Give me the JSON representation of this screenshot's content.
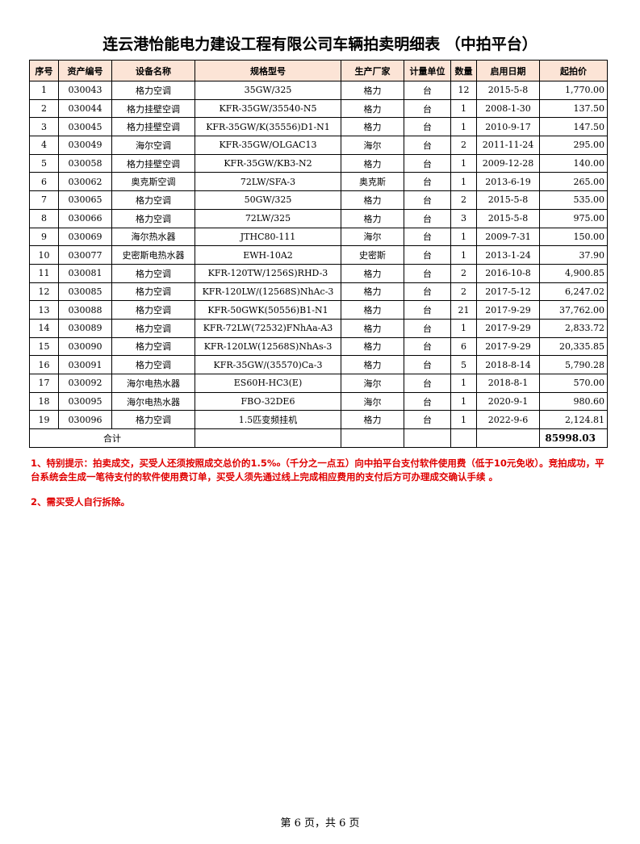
{
  "title": "连云港怡能电力建设工程有限公司车辆拍卖明细表 （中拍平台）",
  "columns": [
    "序号",
    "资产编号",
    "设备名称",
    "规格型号",
    "生产厂家",
    "计量单位",
    "数量",
    "启用日期",
    "起拍价"
  ],
  "rows": [
    [
      "1",
      "030043",
      "格力空调",
      "35GW/325",
      "格力",
      "台",
      "12",
      "2015-5-8",
      "1,770.00"
    ],
    [
      "2",
      "030044",
      "格力挂壁空调",
      "KFR-35GW/35540-N5",
      "格力",
      "台",
      "1",
      "2008-1-30",
      "137.50"
    ],
    [
      "3",
      "030045",
      "格力挂壁空调",
      "KFR-35GW/K(35556)D1-N1",
      "格力",
      "台",
      "1",
      "2010-9-17",
      "147.50"
    ],
    [
      "4",
      "030049",
      "海尔空调",
      "KFR-35GW/OLGAC13",
      "海尔",
      "台",
      "2",
      "2011-11-24",
      "295.00"
    ],
    [
      "5",
      "030058",
      "格力挂壁空调",
      "KFR-35GW/KB3-N2",
      "格力",
      "台",
      "1",
      "2009-12-28",
      "140.00"
    ],
    [
      "6",
      "030062",
      "奥克斯空调",
      "72LW/SFA-3",
      "奥克斯",
      "台",
      "1",
      "2013-6-19",
      "265.00"
    ],
    [
      "7",
      "030065",
      "格力空调",
      "50GW/325",
      "格力",
      "台",
      "2",
      "2015-5-8",
      "535.00"
    ],
    [
      "8",
      "030066",
      "格力空调",
      "72LW/325",
      "格力",
      "台",
      "3",
      "2015-5-8",
      "975.00"
    ],
    [
      "9",
      "030069",
      "海尔热水器",
      "JTHC80-111",
      "海尔",
      "台",
      "1",
      "2009-7-31",
      "150.00"
    ],
    [
      "10",
      "030077",
      "史密斯电热水器",
      "EWH-10A2",
      "史密斯",
      "台",
      "1",
      "2013-1-24",
      "37.90"
    ],
    [
      "11",
      "030081",
      "格力空调",
      "KFR-120TW/1256S)RHD-3",
      "格力",
      "台",
      "2",
      "2016-10-8",
      "4,900.85"
    ],
    [
      "12",
      "030085",
      "格力空调",
      "KFR-120LW/(12568S)NhAc-3",
      "格力",
      "台",
      "2",
      "2017-5-12",
      "6,247.02"
    ],
    [
      "13",
      "030088",
      "格力空调",
      "KFR-50GWK(50556)B1-N1",
      "格力",
      "台",
      "21",
      "2017-9-29",
      "37,762.00"
    ],
    [
      "14",
      "030089",
      "格力空调",
      "KFR-72LW(72532)FNhAa-A3",
      "格力",
      "台",
      "1",
      "2017-9-29",
      "2,833.72"
    ],
    [
      "15",
      "030090",
      "格力空调",
      "KFR-120LW(12568S)NhAs-3",
      "格力",
      "台",
      "6",
      "2017-9-29",
      "20,335.85"
    ],
    [
      "16",
      "030091",
      "格力空调",
      "KFR-35GW/(35570)Ca-3",
      "格力",
      "台",
      "5",
      "2018-8-14",
      "5,790.28"
    ],
    [
      "17",
      "030092",
      "海尔电热水器",
      "ES60H-HC3(E)",
      "海尔",
      "台",
      "1",
      "2018-8-1",
      "570.00"
    ],
    [
      "18",
      "030095",
      "海尔电热水器",
      "FBO-32DE6",
      "海尔",
      "台",
      "1",
      "2020-9-1",
      "980.60"
    ],
    [
      "19",
      "030096",
      "格力空调",
      "1.5匹变频挂机",
      "格力",
      "台",
      "1",
      "2022-9-6",
      "2,124.81"
    ]
  ],
  "total": {
    "label": "合计",
    "value": "85998.03"
  },
  "notes": [
    "1、特别提示：拍卖成交，买受人还须按照成交总价的1.5‰（千分之一点五）向中拍平台支付软件使用费（低于10元免收）。竞拍成功，平台系统会生成一笔待支付的软件使用费订单，买受人须先通过线上完成相应费用的支付后方可办理成交确认手续 。",
    "2、需买受人自行拆除。"
  ],
  "footer": "第 6 页，共 6 页",
  "colors": {
    "header_bg": "#fce4d6",
    "notes": "#e00000"
  }
}
